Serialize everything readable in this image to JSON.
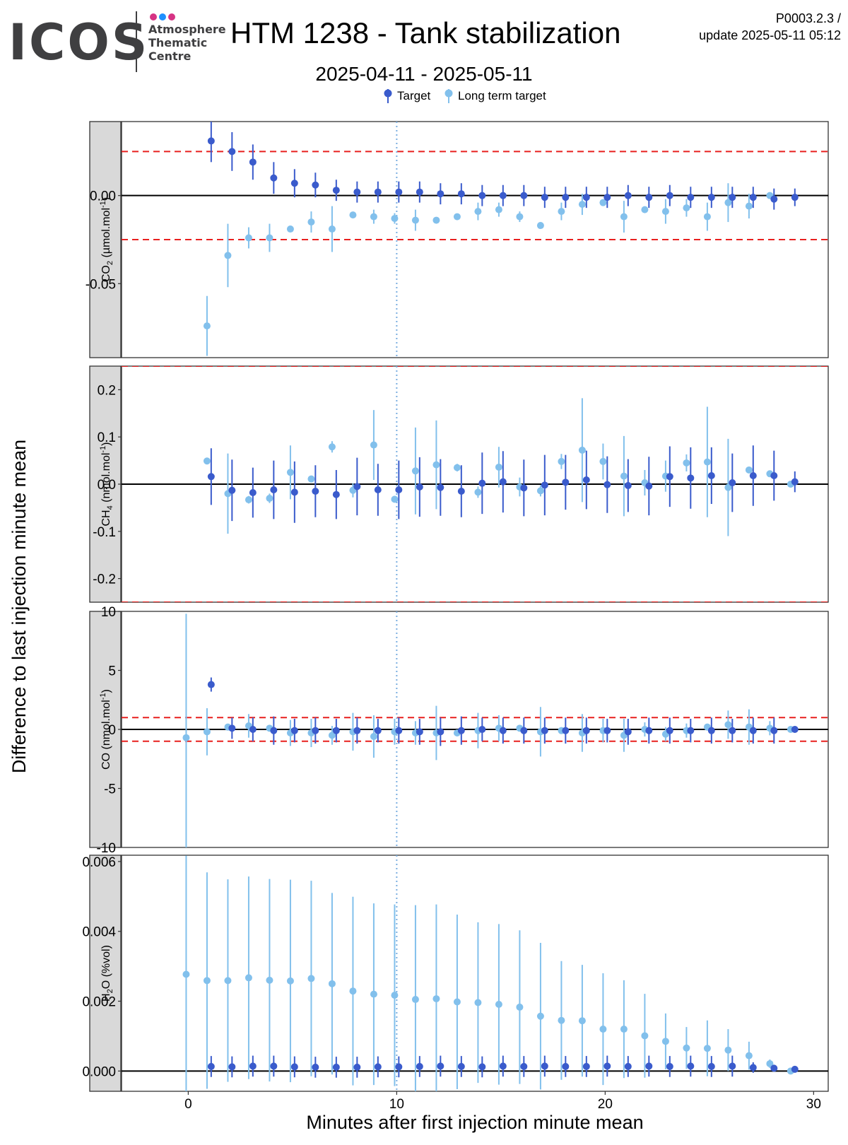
{
  "header": {
    "logo_word": "ICOS",
    "logo_sub": [
      "Atmosphere",
      "Thematic",
      "Centre"
    ],
    "logo_dot_colors": [
      "#d63384",
      "#1e90ff",
      "#d63384"
    ],
    "title": "HTM 1238 - Tank stabilization",
    "subtitle": "2025-04-11 - 2025-05-11",
    "version_line1": "P0003.2.3 /",
    "version_line2": "update  2025-05-11 05:12"
  },
  "colors": {
    "target": "#3a5bcc",
    "long_term_target": "#82c0ec",
    "threshold": "#e8201f",
    "vline": "#7aaee0",
    "strip_bg": "#d9d9d9"
  },
  "chart_data": {
    "type": "scatter",
    "xlabel": "Minutes after first injection minute mean",
    "ylabel": "Difference to last injection minute mean",
    "xlim": [
      -3.2,
      30.7
    ],
    "xticks": [
      0,
      10,
      20,
      30
    ],
    "vline_x": 10,
    "legend": {
      "placement": "top",
      "entries": [
        "Target",
        "Long term target"
      ]
    },
    "x_target": [
      1,
      2,
      3,
      4,
      5,
      6,
      7,
      8,
      9,
      10,
      11,
      12,
      13,
      14,
      15,
      16,
      17,
      18,
      19,
      20,
      21,
      22,
      23,
      24,
      25,
      26,
      27,
      28,
      29
    ],
    "x_long_term": [
      0,
      1,
      2,
      3,
      4,
      5,
      6,
      7,
      8,
      9,
      10,
      11,
      12,
      13,
      14,
      15,
      16,
      17,
      18,
      19,
      20,
      21,
      22,
      23,
      24,
      25,
      26,
      27,
      28,
      29
    ],
    "panels": [
      {
        "strip_label": "CO2 (µmol.mol-1)",
        "strip_main": "CO",
        "strip_sub": "2",
        "strip_rest": " (µmol.mol",
        "strip_sup": "-1",
        "strip_end": ")",
        "ylim": [
          -0.092,
          0.042
        ],
        "yticks": [
          -0.05,
          0.0
        ],
        "ytick_labels": [
          "-0.05",
          "0.00"
        ],
        "thresholds": [
          0.025,
          -0.025
        ],
        "target_values": [
          0.031,
          0.025,
          0.019,
          0.01,
          0.007,
          0.006,
          0.003,
          0.002,
          0.002,
          0.002,
          0.002,
          0.001,
          0.001,
          0.0,
          0.0,
          0.0,
          -0.001,
          -0.001,
          -0.001,
          -0.001,
          0.0,
          -0.001,
          0.0,
          -0.001,
          -0.001,
          -0.001,
          -0.001,
          -0.002,
          -0.001
        ],
        "target_err": [
          0.012,
          0.011,
          0.01,
          0.009,
          0.008,
          0.007,
          0.006,
          0.006,
          0.006,
          0.006,
          0.006,
          0.006,
          0.006,
          0.006,
          0.006,
          0.006,
          0.006,
          0.006,
          0.006,
          0.006,
          0.006,
          0.006,
          0.006,
          0.006,
          0.006,
          0.006,
          0.006,
          0.006,
          0.005
        ],
        "long_term_values": [
          null,
          -0.074,
          -0.034,
          -0.024,
          -0.024,
          -0.019,
          -0.015,
          -0.019,
          -0.011,
          -0.012,
          -0.013,
          -0.014,
          -0.014,
          -0.012,
          -0.009,
          -0.008,
          -0.012,
          -0.017,
          -0.009,
          -0.005,
          -0.004,
          -0.012,
          -0.008,
          -0.009,
          -0.007,
          -0.012,
          -0.004,
          -0.006,
          0.0,
          null
        ],
        "long_term_err": [
          null,
          0.017,
          0.018,
          0.006,
          0.008,
          0.0,
          0.006,
          0.013,
          0.0,
          0.004,
          0.003,
          0.006,
          0.0,
          0.0,
          0.005,
          0.004,
          0.003,
          0.0,
          0.005,
          0.006,
          0.0,
          0.009,
          0.0,
          0.007,
          0.005,
          0.008,
          0.011,
          0.007,
          0.0,
          null
        ]
      },
      {
        "strip_label": "CH4 (nmol.mol-1)",
        "strip_main": "CH",
        "strip_sub": "4",
        "strip_rest": " (nmol.mol",
        "strip_sup": "-1",
        "strip_end": ")",
        "ylim": [
          -0.25,
          0.25
        ],
        "yticks": [
          -0.2,
          -0.1,
          0.0,
          0.1,
          0.2
        ],
        "ytick_labels": [
          "-0.2",
          "-0.1",
          "0.0",
          "0.1",
          "0.2"
        ],
        "thresholds": [
          0.25,
          -0.25
        ],
        "target_values": [
          0.016,
          -0.013,
          -0.018,
          -0.012,
          -0.017,
          -0.015,
          -0.022,
          -0.005,
          -0.012,
          -0.012,
          -0.006,
          -0.007,
          -0.015,
          0.002,
          0.005,
          -0.008,
          -0.002,
          0.004,
          0.009,
          -0.001,
          -0.003,
          -0.004,
          0.016,
          0.013,
          0.018,
          0.003,
          0.018,
          0.018,
          0.005
        ],
        "target_err": [
          0.06,
          0.065,
          0.053,
          0.062,
          0.065,
          0.055,
          0.052,
          0.061,
          0.055,
          0.062,
          0.063,
          0.06,
          0.055,
          0.065,
          0.065,
          0.06,
          0.064,
          0.058,
          0.062,
          0.06,
          0.056,
          0.062,
          0.064,
          0.065,
          0.06,
          0.062,
          0.064,
          0.053,
          0.022
        ],
        "long_term_values": [
          null,
          0.049,
          -0.02,
          -0.033,
          -0.03,
          0.025,
          0.011,
          0.079,
          -0.013,
          0.083,
          -0.032,
          0.028,
          0.041,
          0.035,
          -0.017,
          0.036,
          -0.006,
          -0.014,
          0.048,
          0.072,
          0.048,
          0.017,
          0.003,
          0.017,
          0.045,
          0.047,
          -0.007,
          0.03,
          0.022,
          0.0
        ],
        "long_term_err": [
          null,
          0.0,
          0.085,
          0.008,
          0.01,
          0.057,
          0.0,
          0.012,
          0.015,
          0.074,
          0.0,
          0.092,
          0.094,
          0.008,
          0.012,
          0.043,
          0.02,
          0.012,
          0.016,
          0.11,
          0.038,
          0.085,
          0.027,
          0.033,
          0.018,
          0.117,
          0.103,
          0.0,
          0.0,
          0.0
        ]
      },
      {
        "strip_label": "CO (nmol.mol-1)",
        "strip_main": "CO",
        "strip_sub": "",
        "strip_rest": " (nmol.mol",
        "strip_sup": "-1",
        "strip_end": ")",
        "ylim": [
          -10,
          10
        ],
        "yticks": [
          -10,
          -5,
          0,
          5,
          10
        ],
        "ytick_labels": [
          "-10",
          "-5",
          "0",
          "5",
          "10"
        ],
        "thresholds": [
          1.0,
          -1.0
        ],
        "target_values": [
          3.8,
          0.1,
          0.0,
          -0.1,
          -0.1,
          -0.1,
          -0.1,
          -0.1,
          -0.1,
          -0.1,
          -0.2,
          -0.2,
          -0.1,
          0.0,
          -0.1,
          -0.1,
          -0.1,
          -0.1,
          -0.1,
          -0.1,
          -0.2,
          -0.1,
          -0.1,
          -0.1,
          -0.1,
          -0.1,
          -0.1,
          -0.1,
          0.0
        ],
        "target_err": [
          0.6,
          0.9,
          1.0,
          1.2,
          1.0,
          1.1,
          1.0,
          1.1,
          1.0,
          1.1,
          1.1,
          1.2,
          1.2,
          1.0,
          1.1,
          1.1,
          1.1,
          1.1,
          1.1,
          1.0,
          1.1,
          1.1,
          1.1,
          1.0,
          1.1,
          1.0,
          1.1,
          1.1,
          0.1
        ],
        "long_term_values": [
          -0.7,
          -0.2,
          0.2,
          0.3,
          0.1,
          -0.3,
          -0.3,
          -0.5,
          -0.2,
          -0.6,
          -0.2,
          -0.3,
          -0.3,
          -0.3,
          -0.1,
          0.1,
          0.1,
          -0.2,
          -0.1,
          -0.3,
          -0.1,
          -0.5,
          0.0,
          -0.4,
          -0.1,
          0.2,
          0.4,
          0.2,
          0.1,
          0.0
        ],
        "long_term_err": [
          10.5,
          2.0,
          0.0,
          1.0,
          0.0,
          1.1,
          1.2,
          0.8,
          1.6,
          1.8,
          1.1,
          1.0,
          2.3,
          0.0,
          1.5,
          1.1,
          0.0,
          2.1,
          0.0,
          1.6,
          1.0,
          1.4,
          0.6,
          0.6,
          0.6,
          0.0,
          1.2,
          1.5,
          0.6,
          0.0
        ]
      },
      {
        "strip_label": "H2O (%vol)",
        "strip_main": "H",
        "strip_sub": "2",
        "strip_rest": "O (%vol)",
        "strip_sup": "",
        "strip_end": "",
        "ylim": [
          -0.00058,
          0.00618
        ],
        "yticks": [
          0.0,
          0.002,
          0.004,
          0.006
        ],
        "ytick_labels": [
          "0.000",
          "0.002",
          "0.004",
          "0.006"
        ],
        "thresholds": [],
        "target_values": [
          0.00013,
          0.00012,
          0.00014,
          0.00014,
          0.00012,
          0.00011,
          0.00011,
          0.00011,
          0.00012,
          0.00012,
          0.00013,
          0.00014,
          0.00013,
          0.00012,
          0.00014,
          0.00013,
          0.00014,
          0.00013,
          0.00013,
          0.00014,
          0.00013,
          0.00014,
          0.00013,
          0.00014,
          0.00013,
          0.00014,
          0.0001,
          8e-05,
          5e-05
        ],
        "target_err": [
          0.0003,
          0.0003,
          0.0003,
          0.0003,
          0.0003,
          0.0003,
          0.0003,
          0.0003,
          0.0003,
          0.0003,
          0.0003,
          0.0003,
          0.0003,
          0.0003,
          0.0003,
          0.0003,
          0.0003,
          0.0003,
          0.0003,
          0.0003,
          0.0003,
          0.0003,
          0.0003,
          0.0003,
          0.0003,
          0.0003,
          0.00015,
          0.0001,
          5e-05
        ],
        "long_term_values": [
          0.00277,
          0.00259,
          0.00259,
          0.00267,
          0.0026,
          0.00258,
          0.00265,
          0.0025,
          0.00229,
          0.0022,
          0.00217,
          0.00205,
          0.00207,
          0.00198,
          0.00196,
          0.00191,
          0.00183,
          0.00157,
          0.00145,
          0.00144,
          0.0012,
          0.0012,
          0.00101,
          0.00085,
          0.00066,
          0.00065,
          0.0006,
          0.00044,
          0.00021,
          0.0
        ],
        "long_term_err": [
          0.0034,
          0.0031,
          0.0029,
          0.0029,
          0.0029,
          0.0029,
          0.0028,
          0.0026,
          0.0027,
          0.0026,
          0.0026,
          0.0027,
          0.0027,
          0.0025,
          0.0023,
          0.0023,
          0.0022,
          0.0021,
          0.0017,
          0.0016,
          0.0016,
          0.0014,
          0.0012,
          0.0008,
          0.0006,
          0.0008,
          0.0006,
          0.0004,
          0.00012,
          0.0
        ]
      }
    ]
  }
}
